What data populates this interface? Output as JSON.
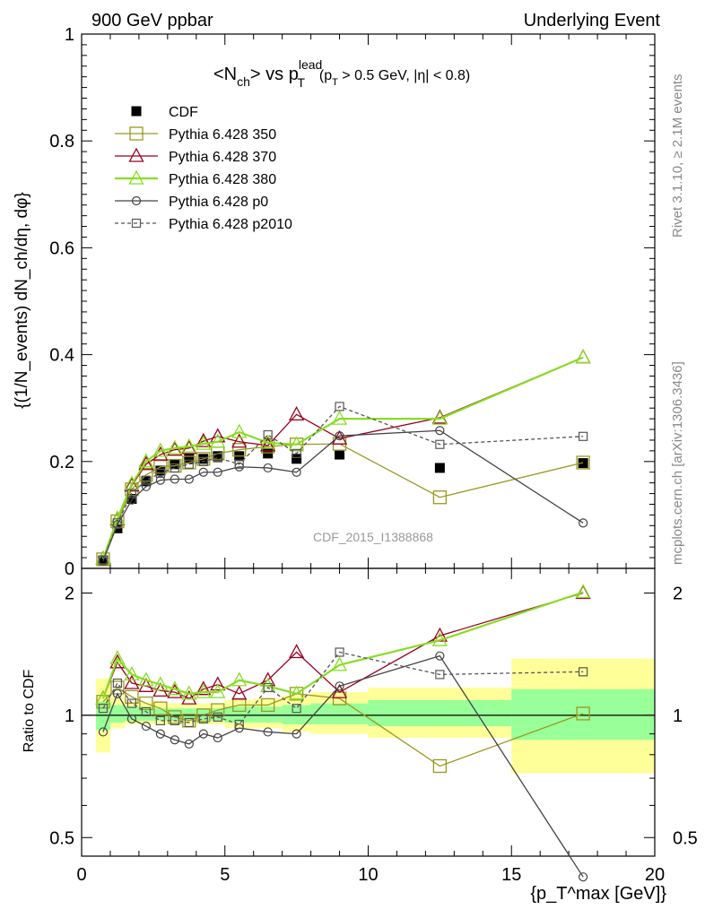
{
  "header": {
    "left": "900 GeV ppbar",
    "right": "Underlying Event"
  },
  "plot_title": {
    "main": "<N",
    "sub_ch": "ch",
    "vs": "> vs p",
    "sup_lead": "lead",
    "sub_T": "T",
    "cut": "(p",
    "cut_sub_T": "T",
    "cut_rest": " > 0.5 GeV, |η| < 0.8)"
  },
  "ylabel_top": "{(1/N_events) dN_ch/dη, dφ}",
  "ylabel_bottom": "Ratio to CDF",
  "xlabel": "{p_T^max [GeV]}",
  "side_text": {
    "rivet": "Rivet 3.1.10, ≥ 2.1M events",
    "mcplots": "mcplots.cern.ch [arXiv:1306.3436]"
  },
  "watermark": "CDF_2015_I1388868",
  "legend": [
    {
      "label": "CDF",
      "color": "#000000",
      "marker": "filled-square"
    },
    {
      "label": "Pythia 6.428 350",
      "color": "#999922",
      "marker": "open-square"
    },
    {
      "label": "Pythia 6.428 370",
      "color": "#990022",
      "marker": "open-triangle"
    },
    {
      "label": "Pythia 6.428 380",
      "color": "#88dd22",
      "marker": "open-triangle"
    },
    {
      "label": "Pythia 6.428 p0",
      "color": "#444444",
      "marker": "open-circle"
    },
    {
      "label": "Pythia 6.428 p2010",
      "color": "#555555",
      "marker": "open-small-square",
      "dashed": true
    }
  ],
  "chart_data": [
    {
      "type": "scatter",
      "panel": "main",
      "xlim": [
        0,
        20
      ],
      "ylim": [
        0,
        1
      ],
      "x_ticks": [
        "0",
        "5",
        "10",
        "15",
        "20"
      ],
      "y_ticks": [
        "0",
        "0.2",
        "0.4",
        "0.6",
        "0.8",
        "1"
      ],
      "x": [
        0.75,
        1.25,
        1.75,
        2.25,
        2.75,
        3.25,
        3.75,
        4.25,
        4.75,
        5.5,
        6.5,
        7.5,
        9.0,
        12.5,
        17.5
      ],
      "series": [
        {
          "name": "CDF",
          "values": [
            0.015,
            0.075,
            0.13,
            0.163,
            0.183,
            0.195,
            0.205,
            0.205,
            0.21,
            0.21,
            0.215,
            0.205,
            0.213,
            0.188,
            0.197
          ]
        },
        {
          "name": "Pythia 6.428 350",
          "values": [
            0.017,
            0.088,
            0.148,
            0.175,
            0.19,
            0.192,
            0.198,
            0.205,
            0.215,
            0.222,
            0.228,
            0.232,
            0.233,
            0.133,
            0.198
          ]
        },
        {
          "name": "Pythia 6.428 370",
          "values": [
            0.018,
            0.092,
            0.155,
            0.195,
            0.213,
            0.222,
            0.225,
            0.238,
            0.247,
            0.237,
            0.23,
            0.288,
            0.243,
            0.282,
            0.395
          ]
        },
        {
          "name": "Pythia 6.428 380",
          "values": [
            0.018,
            0.093,
            0.158,
            0.2,
            0.22,
            0.225,
            0.228,
            0.233,
            0.237,
            0.255,
            0.235,
            0.232,
            0.28,
            0.28,
            0.395
          ]
        },
        {
          "name": "Pythia 6.428 p0",
          "values": [
            0.014,
            0.082,
            0.128,
            0.153,
            0.165,
            0.167,
            0.167,
            0.18,
            0.18,
            0.19,
            0.188,
            0.18,
            0.248,
            0.258,
            0.085
          ]
        },
        {
          "name": "Pythia 6.428 p2010",
          "values": [
            0.016,
            0.085,
            0.14,
            0.165,
            0.178,
            0.188,
            0.195,
            0.2,
            0.207,
            0.195,
            0.25,
            0.215,
            0.303,
            0.232,
            0.247
          ]
        }
      ]
    },
    {
      "type": "scatter",
      "panel": "ratio",
      "xlim": [
        0,
        20
      ],
      "ylim": [
        0.45,
        2.3
      ],
      "y_ticks": [
        "0.5",
        "1",
        "2"
      ],
      "x": [
        0.75,
        1.25,
        1.75,
        2.25,
        2.75,
        3.25,
        3.75,
        4.25,
        4.75,
        5.5,
        6.5,
        7.5,
        9.0,
        12.5,
        17.5
      ],
      "bands": {
        "edges": [
          0.5,
          1.0,
          1.5,
          2.0,
          2.5,
          3.0,
          3.5,
          4.0,
          4.5,
          5.0,
          6.0,
          7.0,
          8.0,
          10.0,
          15.0,
          20.0
        ],
        "green": [
          [
            0.92,
            1.08
          ],
          [
            0.96,
            1.06
          ],
          [
            0.97,
            1.05
          ],
          [
            0.97,
            1.05
          ],
          [
            0.97,
            1.04
          ],
          [
            0.97,
            1.04
          ],
          [
            0.97,
            1.04
          ],
          [
            0.97,
            1.04
          ],
          [
            0.97,
            1.04
          ],
          [
            0.96,
            1.05
          ],
          [
            0.96,
            1.05
          ],
          [
            0.95,
            1.06
          ],
          [
            0.95,
            1.07
          ],
          [
            0.94,
            1.09
          ],
          [
            0.87,
            1.16
          ]
        ],
        "yellow": [
          [
            0.81,
            1.23
          ],
          [
            0.93,
            1.11
          ],
          [
            0.95,
            1.08
          ],
          [
            0.95,
            1.08
          ],
          [
            0.95,
            1.08
          ],
          [
            0.95,
            1.07
          ],
          [
            0.95,
            1.07
          ],
          [
            0.95,
            1.07
          ],
          [
            0.95,
            1.07
          ],
          [
            0.93,
            1.09
          ],
          [
            0.93,
            1.1
          ],
          [
            0.91,
            1.12
          ],
          [
            0.9,
            1.14
          ],
          [
            0.88,
            1.17
          ],
          [
            0.72,
            1.38
          ]
        ]
      },
      "series": [
        {
          "name": "Pythia 6.428 350",
          "values": [
            1.08,
            1.17,
            1.11,
            1.07,
            1.04,
            0.99,
            0.97,
            1.0,
            1.03,
            1.06,
            1.06,
            1.13,
            1.1,
            0.75,
            1.01
          ]
        },
        {
          "name": "Pythia 6.428 370",
          "values": [
            1.1,
            1.35,
            1.2,
            1.18,
            1.15,
            1.14,
            1.1,
            1.16,
            1.19,
            1.13,
            1.22,
            1.43,
            1.14,
            1.57,
            2.0
          ]
        },
        {
          "name": "Pythia 6.428 380",
          "values": [
            1.1,
            1.38,
            1.26,
            1.22,
            1.19,
            1.16,
            1.13,
            1.14,
            1.14,
            1.22,
            1.18,
            1.13,
            1.33,
            1.53,
            2.01
          ]
        },
        {
          "name": "Pythia 6.428 p0",
          "values": [
            0.91,
            1.13,
            0.98,
            0.94,
            0.9,
            0.87,
            0.85,
            0.9,
            0.88,
            0.93,
            0.91,
            0.9,
            1.18,
            1.4,
            0.4
          ]
        },
        {
          "name": "Pythia 6.428 p2010",
          "values": [
            1.04,
            1.2,
            1.07,
            1.02,
            0.97,
            0.97,
            0.96,
            0.98,
            0.99,
            0.95,
            1.17,
            1.04,
            1.43,
            1.26,
            1.28
          ]
        }
      ]
    }
  ]
}
